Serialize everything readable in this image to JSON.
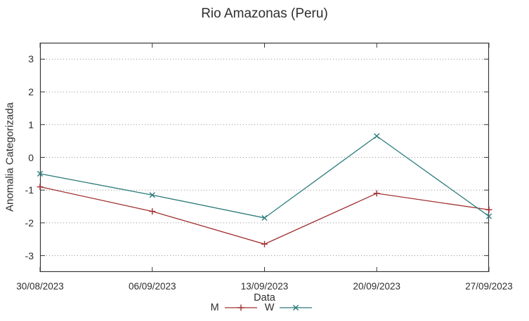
{
  "title": "Rio Amazonas (Peru)",
  "chart_data": {
    "type": "line",
    "title": "Rio Amazonas (Peru)",
    "xlabel": "Data",
    "ylabel": "Anomalia Categorizada",
    "categories": [
      "30/08/2023",
      "06/09/2023",
      "13/09/2023",
      "20/09/2023",
      "27/09/2023"
    ],
    "series": [
      {
        "name": "M",
        "color": "#a13030",
        "marker": "plus",
        "values": [
          -0.9,
          -1.65,
          -2.65,
          -1.1,
          -1.6
        ]
      },
      {
        "name": "W",
        "color": "#2b7a7a",
        "marker": "cross",
        "values": [
          -0.5,
          -1.15,
          -1.85,
          0.65,
          -1.8
        ]
      }
    ],
    "ylim": [
      -3.5,
      3.5
    ],
    "yticks": [
      -3,
      -2,
      -1,
      0,
      1,
      2,
      3
    ],
    "grid": "horizontal-dotted",
    "legend_position": "below"
  },
  "colors": {
    "background": "#ffffff",
    "border": "#383838",
    "gridline": "#8f8f8f",
    "text": "#2e2e2e",
    "series_m": "#a13030",
    "series_w": "#2b7a7a"
  }
}
